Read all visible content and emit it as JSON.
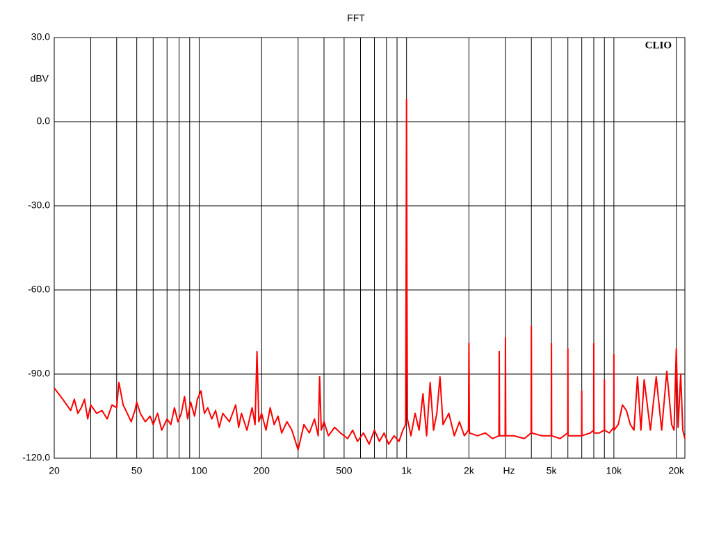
{
  "chart_data": {
    "type": "line",
    "title": "FFT",
    "y_label": "dBV",
    "x_label": "Hz",
    "brand": "CLIO",
    "log_x": true,
    "grid": true,
    "color": "#ff0000",
    "xlim": [
      20,
      22000
    ],
    "ylim": [
      -120,
      30
    ],
    "xticks": [
      20,
      50,
      100,
      200,
      500,
      {
        "value": 1000,
        "label": "1k"
      },
      {
        "value": 2000,
        "label": "2k"
      },
      {
        "value": 5000,
        "label": "5k"
      },
      {
        "value": 10000,
        "label": "10k"
      },
      {
        "value": 20000,
        "label": "20k"
      }
    ],
    "xgrid_minor": [
      30,
      40,
      60,
      70,
      80,
      90,
      300,
      400,
      600,
      700,
      800,
      900,
      3000,
      4000,
      6000,
      7000,
      8000,
      9000
    ],
    "yticks": [
      {
        "value": 30,
        "label": "30.0"
      },
      {
        "value": 0,
        "label": "0.0"
      },
      {
        "value": -30,
        "label": "-30.0"
      },
      {
        "value": -60,
        "label": "-60.0"
      },
      {
        "value": -90,
        "label": "-90.0"
      },
      {
        "value": -120,
        "label": "-120.0"
      }
    ],
    "x": [
      20,
      21,
      22,
      23,
      24,
      25,
      26,
      27,
      28,
      29,
      30,
      32,
      34,
      36,
      38,
      40,
      41,
      42,
      43,
      45,
      47,
      49,
      50,
      52,
      55,
      58,
      60,
      63,
      66,
      70,
      73,
      76,
      79,
      82,
      85,
      88,
      91,
      95,
      98,
      102,
      106,
      110,
      115,
      120,
      125,
      130,
      140,
      150,
      155,
      160,
      170,
      180,
      186,
      190,
      194,
      200,
      210,
      220,
      230,
      240,
      250,
      265,
      280,
      300,
      320,
      340,
      360,
      375,
      381,
      388,
      400,
      420,
      450,
      480,
      520,
      550,
      580,
      620,
      660,
      700,
      740,
      780,
      820,
      870,
      920,
      960,
      990,
      995,
      1000,
      1005,
      1010,
      1050,
      1100,
      1150,
      1200,
      1250,
      1300,
      1350,
      1400,
      1450,
      1500,
      1600,
      1700,
      1800,
      1900,
      1990,
      2000,
      2010,
      2200,
      2400,
      2600,
      2790,
      2800,
      2810,
      2990,
      3000,
      3010,
      3300,
      3700,
      3990,
      4000,
      4010,
      4500,
      4990,
      5000,
      5010,
      5500,
      5990,
      6000,
      6010,
      6500,
      6990,
      7000,
      7010,
      7700,
      7990,
      8000,
      8010,
      8500,
      8990,
      9000,
      9010,
      9500,
      9990,
      10000,
      10010,
      10500,
      11000,
      11500,
      12000,
      12500,
      13000,
      13500,
      14000,
      15000,
      16000,
      17000,
      18000,
      19000,
      19500,
      20000,
      20400,
      21000,
      21500,
      22000
    ],
    "values": [
      -95,
      -97,
      -99,
      -101,
      -103,
      -99,
      -104,
      -102,
      -99,
      -106,
      -101,
      -104,
      -103,
      -106,
      -101,
      -102,
      -93,
      -97,
      -101,
      -104,
      -107,
      -103,
      -100,
      -104,
      -107,
      -105,
      -108,
      -104,
      -110,
      -106,
      -108,
      -102,
      -107,
      -104,
      -98,
      -106,
      -100,
      -105,
      -99,
      -96,
      -104,
      -102,
      -106,
      -103,
      -109,
      -104,
      -107,
      -101,
      -109,
      -104,
      -110,
      -102,
      -108,
      -82,
      -107,
      -104,
      -110,
      -102,
      -108,
      -105,
      -111,
      -107,
      -110,
      -117,
      -108,
      -111,
      -106,
      -112,
      -91,
      -110,
      -107,
      -112,
      -109,
      -111,
      -113,
      -110,
      -114,
      -111,
      -115,
      -110,
      -114,
      -111,
      -115,
      -112,
      -114,
      -110,
      -108,
      -60,
      8,
      -60,
      -106,
      -112,
      -104,
      -110,
      -97,
      -112,
      -93,
      -110,
      -104,
      -91,
      -108,
      -104,
      -112,
      -107,
      -112,
      -110,
      -79,
      -111,
      -112,
      -111,
      -113,
      -112,
      -82,
      -112,
      -112,
      -77,
      -112,
      -112,
      -113,
      -111,
      -73,
      -111,
      -112,
      -112,
      -79,
      -112,
      -113,
      -111,
      -81,
      -112,
      -112,
      -112,
      -96,
      -112,
      -111,
      -110,
      -79,
      -111,
      -111,
      -110,
      -92,
      -110,
      -111,
      -109,
      -83,
      -110,
      -108,
      -101,
      -103,
      -108,
      -110,
      -91,
      -110,
      -92,
      -110,
      -91,
      -110,
      -89,
      -108,
      -110,
      -81,
      -109,
      -90,
      -110,
      -113
    ]
  }
}
